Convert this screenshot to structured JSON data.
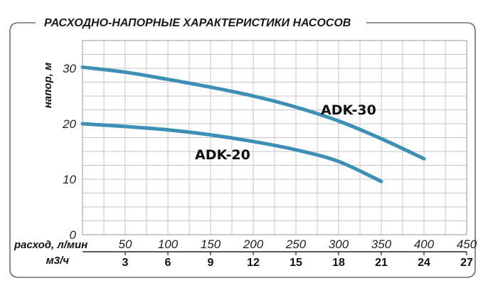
{
  "chart_data": {
    "type": "line",
    "title": "РАСХОДНО-НАПОРНЫЕ ХАРАКТЕРИСТИКИ НАСОСОВ",
    "ylabel": "напор, м",
    "xlabel": "расход, л/мин",
    "x2label": "м3/ч",
    "xlim": [
      0,
      450
    ],
    "ylim": [
      0,
      35
    ],
    "x_ticks": [
      "50",
      "100",
      "150",
      "200",
      "250",
      "300",
      "350",
      "400",
      "450"
    ],
    "x_tick_values": [
      50,
      100,
      150,
      200,
      250,
      300,
      350,
      400,
      450
    ],
    "x2_ticks": [
      "3",
      "6",
      "9",
      "12",
      "15",
      "18",
      "21",
      "24",
      "27"
    ],
    "y_ticks": [
      "0",
      "10",
      "20",
      "30"
    ],
    "y_tick_values": [
      0,
      10,
      20,
      30
    ],
    "grid": true,
    "line_color": "#3d8fb5",
    "series": [
      {
        "name": "ADK-30",
        "x": [
          0,
          50,
          100,
          150,
          200,
          250,
          300,
          350,
          400
        ],
        "y": [
          30.2,
          29.3,
          28.0,
          26.6,
          25.0,
          23.0,
          20.5,
          17.3,
          13.7
        ]
      },
      {
        "name": "ADK-20",
        "x": [
          0,
          50,
          100,
          150,
          200,
          250,
          300,
          350
        ],
        "y": [
          20.0,
          19.5,
          18.9,
          18.0,
          16.8,
          15.3,
          13.2,
          9.6
        ]
      }
    ]
  }
}
